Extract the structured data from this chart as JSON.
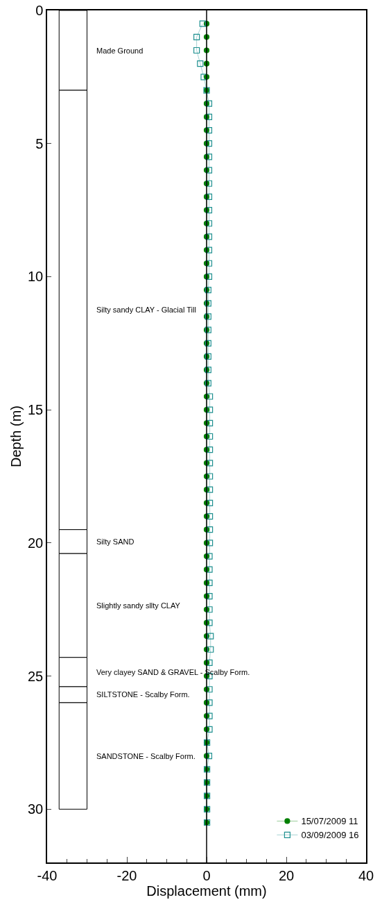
{
  "chart_data": {
    "type": "line",
    "xlabel": "Displacement (mm)",
    "ylabel": "Depth (m)",
    "series": [
      {
        "name": "15/07/2009 11",
        "color": "#007f00",
        "marker": "circle",
        "x": [
          0,
          0,
          0,
          0,
          0,
          0,
          0,
          0,
          0,
          0,
          0,
          0,
          0,
          0,
          0,
          0,
          0,
          0,
          0,
          0,
          0,
          0,
          0,
          0,
          0,
          0,
          0,
          0,
          0,
          0,
          0,
          0,
          0,
          0,
          0,
          0,
          0,
          0,
          0,
          0,
          0,
          0,
          0,
          0,
          0,
          0,
          0,
          0,
          0,
          0,
          0,
          0,
          0,
          0,
          0,
          0,
          0,
          0,
          0,
          0,
          0
        ],
        "values": [
          0.5,
          1,
          1.5,
          2,
          2.5,
          3,
          3.5,
          4,
          4.5,
          5,
          5.5,
          6,
          6.5,
          7,
          7.5,
          8,
          8.5,
          9,
          9.5,
          10,
          10.5,
          11,
          11.5,
          12,
          12.5,
          13,
          13.5,
          14,
          14.5,
          15,
          15.5,
          16,
          16.5,
          17,
          17.5,
          18,
          18.5,
          19,
          19.5,
          20,
          20.5,
          21,
          21.5,
          22,
          22.5,
          23,
          23.5,
          24,
          24.5,
          25,
          25.5,
          26,
          26.5,
          27,
          27.5,
          28,
          28.5,
          29,
          29.5,
          30,
          30.5
        ]
      },
      {
        "name": "03/09/2009 16",
        "color": "#1f9090",
        "marker": "square",
        "x": [
          -1,
          -2.5,
          -2.5,
          -1.6,
          -0.7,
          0,
          0.6,
          0.6,
          0.6,
          0.6,
          0.6,
          0.6,
          0.6,
          0.6,
          0.6,
          0.6,
          0.6,
          0.6,
          0.6,
          0.6,
          0.4,
          0.4,
          0.4,
          0.4,
          0.4,
          0.4,
          0.4,
          0.4,
          0.8,
          0.8,
          0.8,
          0.8,
          0.8,
          0.8,
          0.8,
          0.8,
          0.8,
          0.8,
          0.8,
          0.8,
          0.7,
          0.7,
          0.7,
          0.7,
          0.7,
          0.7,
          1,
          1,
          0.7,
          0.7,
          0.7,
          0.7,
          0.7,
          0.7,
          0.1,
          0.6,
          0.1,
          0.1,
          0.1,
          0.1,
          0.1
        ],
        "values": [
          0.5,
          1,
          1.5,
          2,
          2.5,
          3,
          3.5,
          4,
          4.5,
          5,
          5.5,
          6,
          6.5,
          7,
          7.5,
          8,
          8.5,
          9,
          9.5,
          10,
          10.5,
          11,
          11.5,
          12,
          12.5,
          13,
          13.5,
          14,
          14.5,
          15,
          15.5,
          16,
          16.5,
          17,
          17.5,
          18,
          18.5,
          19,
          19.5,
          20,
          20.5,
          21,
          21.5,
          22,
          22.5,
          23,
          23.5,
          24,
          24.5,
          25,
          25.5,
          26,
          26.5,
          27,
          27.5,
          28,
          28.5,
          29,
          29.5,
          30,
          30.5
        ]
      }
    ],
    "xlim": [
      -40,
      40
    ],
    "xticks": [
      -40,
      -20,
      0,
      20,
      40
    ],
    "ylim": [
      32,
      0
    ],
    "yticks": [
      0,
      5,
      10,
      15,
      20,
      25,
      30
    ],
    "ref_lines": [
      {
        "axis": "x",
        "value": 0,
        "color": "#000000"
      }
    ],
    "bands": [
      {
        "axis": "y",
        "from": 0,
        "to": 3,
        "label": "Made Ground",
        "color": "#ffffff"
      },
      {
        "axis": "y",
        "from": 3,
        "to": 19.5,
        "label": "Silty sandy CLAY - Glacial Till",
        "color": "#ffffff"
      },
      {
        "axis": "y",
        "from": 19.5,
        "to": 20.4,
        "label": "Silty SAND",
        "color": "#ffffff"
      },
      {
        "axis": "y",
        "from": 20.4,
        "to": 24.3,
        "label": "Slightly sandy sllty CLAY",
        "color": "#ffffff"
      },
      {
        "axis": "y",
        "from": 24.3,
        "to": 25.4,
        "label": "Very clayey SAND & GRAVEL - Scalby Form.",
        "color": "#ffffff"
      },
      {
        "axis": "y",
        "from": 25.4,
        "to": 26,
        "label": "SILTSTONE - Scalby Form.",
        "color": "#ffffff"
      },
      {
        "axis": "y",
        "from": 26,
        "to": 30,
        "label": "SANDSTONE - Scalby Form.",
        "color": "#ffffff"
      }
    ],
    "legend": "bottom right",
    "grid": false
  }
}
